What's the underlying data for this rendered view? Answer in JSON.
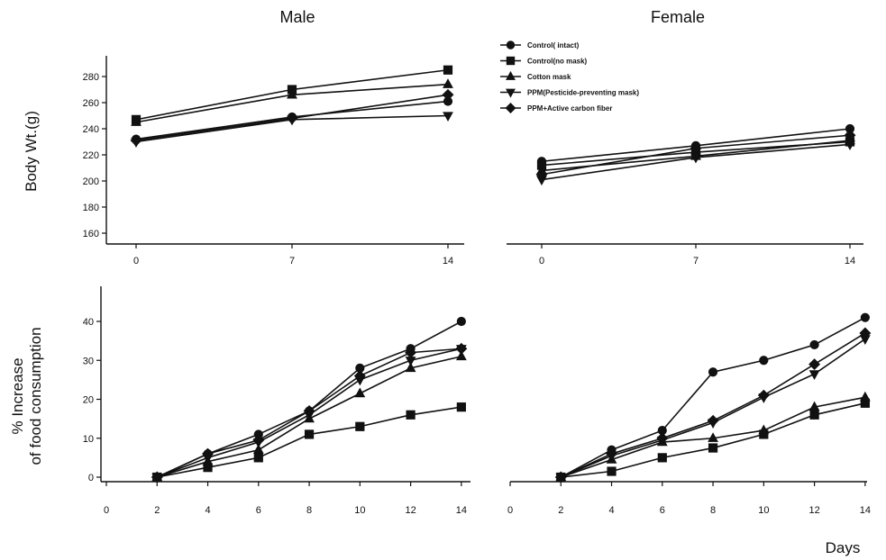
{
  "column_titles": [
    "Male",
    "Female"
  ],
  "ylabel_top": "Body Wt.(g)",
  "ylabel_bottom_line1": "% Increase",
  "ylabel_bottom_line2": "of food consumption",
  "xlabel": "Days",
  "legend": [
    {
      "label": "Control( intact)",
      "marker": "circle"
    },
    {
      "label": "Control(no mask)",
      "marker": "square"
    },
    {
      "label": "Cotton mask",
      "marker": "triangle-up"
    },
    {
      "label": "PPM(Pesticide-preventing mask)",
      "marker": "triangle-down"
    },
    {
      "label": "PPM+Active carbon fiber",
      "marker": "diamond"
    }
  ],
  "chart_data": [
    {
      "type": "line",
      "panel": "Male",
      "ylabel": "Body Wt.(g)",
      "x": [
        0,
        7,
        14
      ],
      "x_tick_labels": [
        "0",
        "7",
        "14"
      ],
      "y_tick_labels": [
        "160",
        "180",
        "200",
        "220",
        "240",
        "260",
        "280"
      ],
      "ylim": [
        155,
        290
      ],
      "series": [
        {
          "name": "Control( intact)",
          "values": [
            232,
            249,
            261
          ]
        },
        {
          "name": "Control(no mask)",
          "values": [
            247,
            270,
            285
          ]
        },
        {
          "name": "Cotton mask",
          "values": [
            245,
            266,
            274
          ]
        },
        {
          "name": "PPM(Pesticide-preventing mask)",
          "values": [
            230,
            247,
            250
          ]
        },
        {
          "name": "PPM+Active carbon fiber",
          "values": [
            231,
            248,
            266
          ]
        }
      ]
    },
    {
      "type": "line",
      "panel": "Female",
      "x": [
        0,
        7,
        14
      ],
      "x_tick_labels": [
        "0",
        "7",
        "14"
      ],
      "ylim": [
        155,
        290
      ],
      "series": [
        {
          "name": "Control( intact)",
          "values": [
            215,
            227,
            240
          ]
        },
        {
          "name": "Control(no mask)",
          "values": [
            212,
            222,
            230
          ]
        },
        {
          "name": "Cotton mask",
          "values": [
            208,
            219,
            231
          ]
        },
        {
          "name": "PPM(Pesticide-preventing mask)",
          "values": [
            201,
            218,
            228
          ]
        },
        {
          "name": "PPM+Active carbon fiber",
          "values": [
            205,
            225,
            235
          ]
        }
      ]
    },
    {
      "type": "line",
      "panel": "Male",
      "ylabel": "% Increase of food consumption",
      "x": [
        2,
        4,
        6,
        8,
        10,
        12,
        14
      ],
      "x_tick_labels": [
        "0",
        "2",
        "4",
        "6",
        "8",
        "10",
        "12",
        "14"
      ],
      "y_tick_labels": [
        "0",
        "10",
        "20",
        "30",
        "40"
      ],
      "xlim": [
        0,
        15
      ],
      "ylim": [
        -2,
        45
      ],
      "series": [
        {
          "name": "Control( intact)",
          "values": [
            0,
            6,
            11,
            17,
            28,
            33,
            40
          ]
        },
        {
          "name": "Control(no mask)",
          "values": [
            0,
            2.5,
            5,
            11,
            13,
            16,
            18
          ]
        },
        {
          "name": "Cotton mask",
          "values": [
            0,
            4,
            7,
            15,
            21.5,
            28,
            31
          ]
        },
        {
          "name": "PPM(Pesticide-preventing mask)",
          "values": [
            0,
            5,
            9,
            16,
            25,
            30,
            33
          ]
        },
        {
          "name": "PPM+Active carbon fiber",
          "values": [
            0,
            6,
            9.5,
            17,
            26,
            32,
            33
          ]
        }
      ]
    },
    {
      "type": "line",
      "panel": "Female",
      "xlabel": "Days",
      "x": [
        2,
        4,
        6,
        8,
        10,
        12,
        14
      ],
      "x_tick_labels": [
        "0",
        "2",
        "4",
        "6",
        "8",
        "10",
        "12",
        "14"
      ],
      "xlim": [
        0,
        15
      ],
      "ylim": [
        -2,
        45
      ],
      "series": [
        {
          "name": "Control( intact)",
          "values": [
            0,
            7,
            12,
            27,
            30,
            34,
            41
          ]
        },
        {
          "name": "Control(no mask)",
          "values": [
            0,
            1.5,
            5,
            7.5,
            11,
            16,
            19
          ]
        },
        {
          "name": "Cotton mask",
          "values": [
            0,
            4.5,
            9,
            10,
            12,
            18,
            20.5
          ]
        },
        {
          "name": "PPM(Pesticide-preventing mask)",
          "values": [
            0,
            5.5,
            9.5,
            14,
            20.5,
            26.5,
            35.5
          ]
        },
        {
          "name": "PPM+Active carbon fiber",
          "values": [
            0,
            6,
            10,
            14.5,
            21,
            29,
            37
          ]
        }
      ]
    }
  ]
}
